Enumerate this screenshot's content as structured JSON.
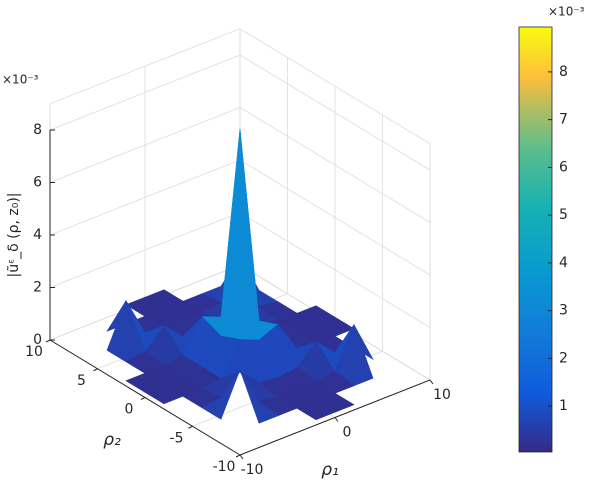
{
  "chart_data": {
    "type": "surface",
    "xlabel": "ρ₁",
    "ylabel": "ρ₂",
    "zlabel": "|ũᵋ_δ (ρ, z₀)|",
    "z_multiplier": "×10⁻³",
    "x": [
      -10,
      -8,
      -6,
      -4,
      -2,
      0,
      2,
      4,
      6,
      8,
      10
    ],
    "y": [
      -10,
      -8,
      -6,
      -4,
      -2,
      0,
      2,
      4,
      6,
      8,
      10
    ],
    "z": [
      [
        null,
        null,
        null,
        null,
        0.2,
        0.2,
        0.2,
        null,
        null,
        null,
        null
      ],
      [
        null,
        null,
        0.2,
        0.2,
        0.2,
        0.2,
        0.2,
        0.2,
        0.2,
        null,
        null
      ],
      [
        null,
        0.2,
        1.8,
        0.3,
        0.2,
        0.2,
        0.2,
        0.3,
        1.8,
        0.2,
        null
      ],
      [
        null,
        0.2,
        0.3,
        1.0,
        0.3,
        0.2,
        0.3,
        1.0,
        0.3,
        0.2,
        null
      ],
      [
        0.2,
        0.2,
        0.2,
        0.3,
        1.5,
        1.2,
        1.5,
        0.3,
        0.2,
        0.2,
        0.2
      ],
      [
        0.2,
        0.2,
        0.2,
        0.3,
        1.2,
        8.8,
        1.2,
        0.3,
        0.2,
        0.2,
        0.2
      ],
      [
        0.2,
        0.2,
        0.2,
        0.3,
        1.5,
        1.2,
        1.5,
        0.3,
        0.2,
        0.2,
        0.2
      ],
      [
        null,
        0.2,
        0.3,
        1.0,
        0.3,
        0.2,
        0.3,
        1.0,
        0.3,
        0.2,
        null
      ],
      [
        null,
        0.2,
        1.8,
        0.3,
        0.2,
        0.2,
        0.2,
        0.3,
        1.8,
        0.2,
        null
      ],
      [
        null,
        null,
        0.2,
        0.2,
        0.2,
        0.2,
        0.2,
        0.2,
        0.2,
        null,
        null
      ],
      [
        null,
        null,
        null,
        null,
        0.2,
        0.2,
        0.2,
        null,
        null,
        null,
        null
      ]
    ],
    "xlim": [
      -10,
      10
    ],
    "xticks": [
      -10,
      0,
      10
    ],
    "ylim": [
      -10,
      10
    ],
    "yticks": [
      -10,
      -5,
      0,
      5,
      10
    ],
    "zlim": [
      0,
      9
    ],
    "zticks": [
      0,
      2,
      4,
      6,
      8
    ],
    "grid": true,
    "colormap": "parula",
    "colorbar": {
      "clim": [
        0.04,
        8.94
      ],
      "ticks": [
        1,
        2,
        3,
        4,
        5,
        6,
        7,
        8
      ],
      "multiplier": "×10⁻³"
    }
  }
}
